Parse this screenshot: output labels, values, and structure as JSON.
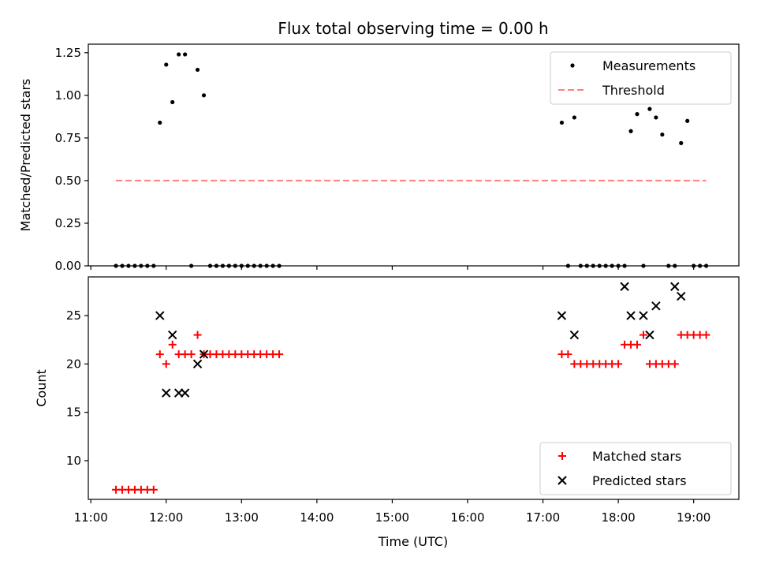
{
  "chart_data": {
    "title": "Flux total observing time = 0.00 h",
    "xlabel": "Time (UTC)",
    "x_ticks": [
      "11:00",
      "12:00",
      "13:00",
      "14:00",
      "15:00",
      "16:00",
      "17:00",
      "18:00",
      "19:00"
    ],
    "xlim": [
      "10:58",
      "19:36"
    ],
    "panels": [
      {
        "type": "scatter",
        "ylabel": "Matched/Predicted stars",
        "ylim": [
          0,
          1.3
        ],
        "y_ticks": [
          "0.00",
          "0.25",
          "0.50",
          "0.75",
          "1.00",
          "1.25"
        ],
        "legend_position": "top-right",
        "series": [
          {
            "name": "Measurements",
            "marker": "dot",
            "color": "#000000",
            "x": [
              "11:20",
              "11:25",
              "11:30",
              "11:35",
              "11:40",
              "11:45",
              "11:50",
              "11:55",
              "12:00",
              "12:05",
              "12:10",
              "12:15",
              "12:20",
              "12:25",
              "12:30",
              "12:35",
              "12:40",
              "12:45",
              "12:50",
              "12:55",
              "13:00",
              "13:05",
              "13:10",
              "13:15",
              "13:20",
              "13:25",
              "13:30",
              "17:15",
              "17:20",
              "17:25",
              "17:30",
              "17:35",
              "17:40",
              "17:45",
              "17:50",
              "17:55",
              "18:00",
              "18:05",
              "18:10",
              "18:15",
              "18:20",
              "18:25",
              "18:30",
              "18:35",
              "18:40",
              "18:45",
              "18:50",
              "18:55",
              "19:00",
              "19:05",
              "19:10"
            ],
            "y": [
              0,
              0,
              0,
              0,
              0,
              0,
              0,
              0.84,
              1.18,
              0.96,
              1.24,
              1.24,
              0,
              1.15,
              1.0,
              0,
              0,
              0,
              0,
              0,
              0,
              0,
              0,
              0,
              0,
              0,
              0,
              0.84,
              0,
              0.87,
              0,
              0,
              0,
              0,
              0,
              0,
              0,
              0,
              0.79,
              0.89,
              0,
              0.92,
              0.87,
              0.77,
              0,
              0,
              0.72,
              0.85,
              0,
              0,
              0
            ]
          },
          {
            "name": "Threshold",
            "line": "dashed",
            "color": "#ff7f7f",
            "x": [
              "11:20",
              "19:10"
            ],
            "y": [
              0.5,
              0.5
            ]
          }
        ]
      },
      {
        "type": "scatter",
        "ylabel": "Count",
        "ylim": [
          6,
          29
        ],
        "y_ticks": [
          "10",
          "15",
          "20",
          "25"
        ],
        "legend_position": "bottom-right",
        "series": [
          {
            "name": "Matched stars",
            "marker": "plus",
            "color": "#ff0000",
            "x": [
              "11:20",
              "11:25",
              "11:30",
              "11:35",
              "11:40",
              "11:45",
              "11:50",
              "11:55",
              "12:00",
              "12:05",
              "12:10",
              "12:15",
              "12:20",
              "12:25",
              "12:30",
              "12:35",
              "12:40",
              "12:45",
              "12:50",
              "12:55",
              "13:00",
              "13:05",
              "13:10",
              "13:15",
              "13:20",
              "13:25",
              "13:30",
              "17:15",
              "17:20",
              "17:25",
              "17:30",
              "17:35",
              "17:40",
              "17:45",
              "17:50",
              "17:55",
              "18:00",
              "18:05",
              "18:10",
              "18:15",
              "18:20",
              "18:25",
              "18:30",
              "18:35",
              "18:40",
              "18:45",
              "18:50",
              "18:55",
              "19:00",
              "19:05",
              "19:10"
            ],
            "y": [
              7,
              7,
              7,
              7,
              7,
              7,
              7,
              21,
              20,
              22,
              21,
              21,
              21,
              23,
              21,
              21,
              21,
              21,
              21,
              21,
              21,
              21,
              21,
              21,
              21,
              21,
              21,
              21,
              21,
              20,
              20,
              20,
              20,
              20,
              20,
              20,
              20,
              22,
              22,
              22,
              23,
              20,
              20,
              20,
              20,
              20,
              23,
              23,
              23,
              23,
              23
            ]
          },
          {
            "name": "Predicted stars",
            "marker": "x",
            "color": "#000000",
            "x": [
              "11:55",
              "12:00",
              "12:05",
              "12:10",
              "12:15",
              "12:25",
              "12:30",
              "17:15",
              "17:25",
              "18:05",
              "18:10",
              "18:20",
              "18:25",
              "18:30",
              "18:45",
              "18:50"
            ],
            "y": [
              25,
              17,
              23,
              17,
              17,
              20,
              21,
              25,
              23,
              28,
              25,
              25,
              23,
              26,
              28,
              27
            ]
          }
        ]
      }
    ]
  }
}
